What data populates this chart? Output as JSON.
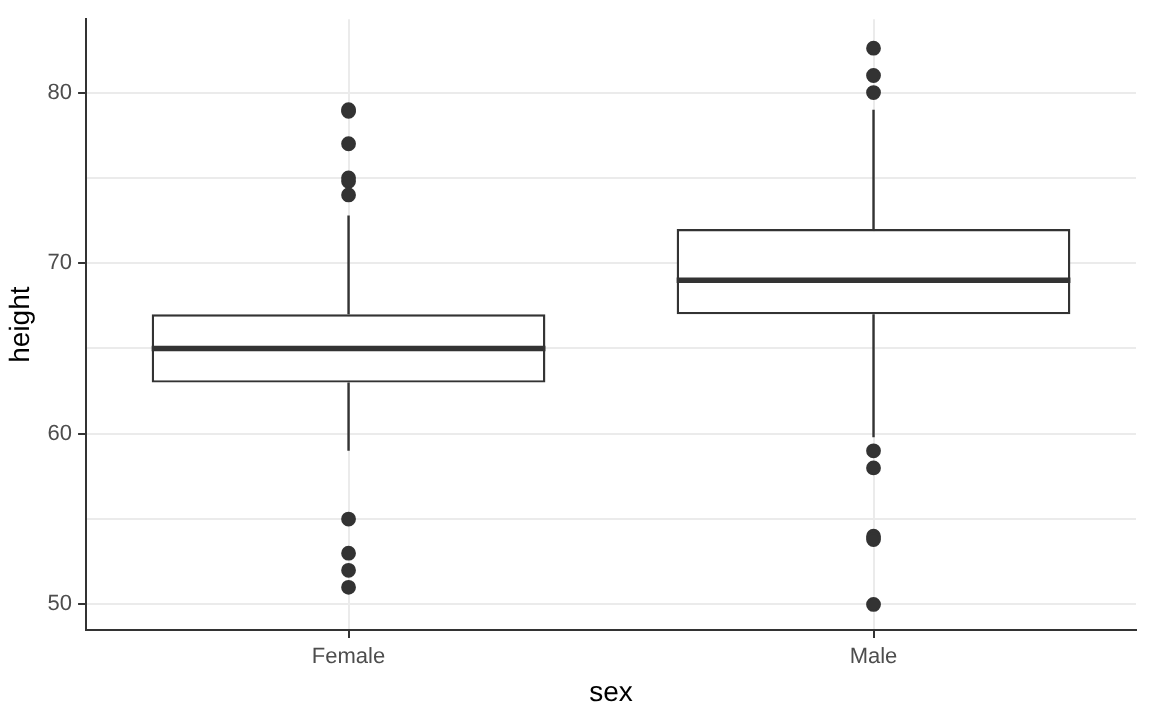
{
  "chart_data": {
    "type": "box",
    "xlabel": "sex",
    "ylabel": "height",
    "categories": [
      "Female",
      "Male"
    ],
    "boxes": [
      {
        "low": 59,
        "q1": 63,
        "median": 65,
        "q3": 67,
        "high": 72.8,
        "outliers": [
          79,
          78.9,
          77,
          75,
          74.8,
          74,
          55,
          53,
          52,
          51
        ]
      },
      {
        "low": 59.8,
        "q1": 67,
        "median": 69,
        "q3": 72,
        "high": 79,
        "outliers": [
          82.6,
          81,
          80,
          59,
          58,
          54,
          53.8,
          50
        ]
      }
    ],
    "color": "#333333",
    "ylim": [
      48.5,
      84.3
    ],
    "yticks": [
      50,
      {
        "value": 55,
        "label": null
      },
      60,
      {
        "value": 65,
        "label": null
      },
      70,
      {
        "value": 75,
        "label": null
      },
      80
    ],
    "grid": true,
    "legend": false
  }
}
